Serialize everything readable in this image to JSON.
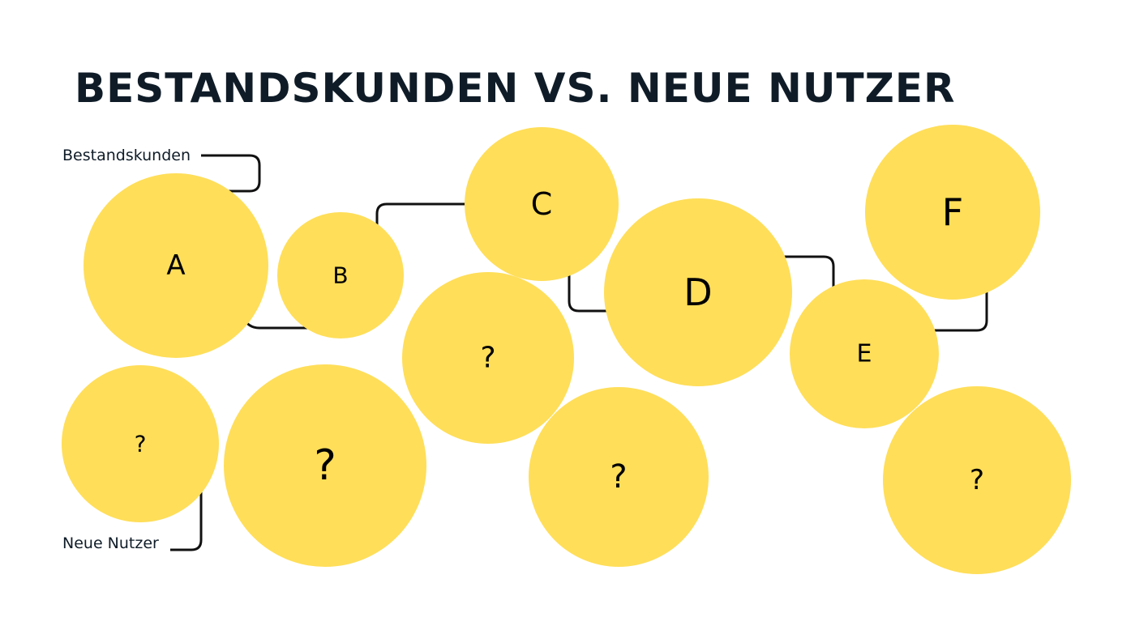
{
  "title": "BESTANDSKUNDEN VS. NEUE NUTZER",
  "labels": {
    "existing": "Bestandskunden",
    "new": "Neue Nutzer"
  },
  "colors": {
    "bubble": "#FFDE59",
    "line": "#111111",
    "text": "#0f1c28"
  },
  "bubbles": [
    {
      "label": "A"
    },
    {
      "label": "B"
    },
    {
      "label": "C"
    },
    {
      "label": "D"
    },
    {
      "label": "E"
    },
    {
      "label": "F"
    },
    {
      "label": "?"
    },
    {
      "label": "?"
    },
    {
      "label": "?"
    },
    {
      "label": "?"
    },
    {
      "label": "?"
    }
  ]
}
